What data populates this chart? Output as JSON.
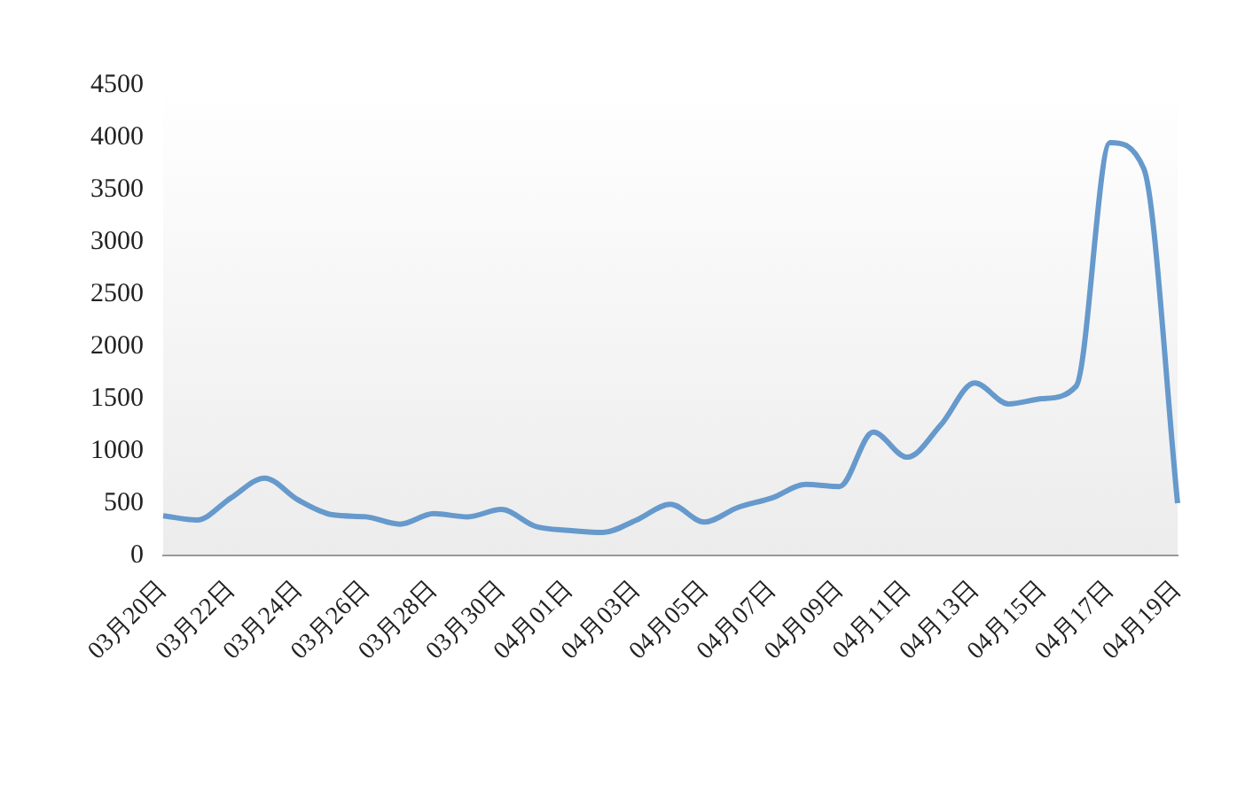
{
  "chart_data": {
    "type": "line",
    "categories": [
      "03月20日",
      null,
      "03月22日",
      null,
      "03月24日",
      null,
      "03月26日",
      null,
      "03月28日",
      null,
      "03月30日",
      null,
      "04月01日",
      null,
      "04月03日",
      null,
      "04月05日",
      null,
      "04月07日",
      null,
      "04月09日",
      null,
      "04月11日",
      null,
      "04月13日",
      null,
      "04月15日",
      null,
      "04月17日",
      null,
      "04月19日"
    ],
    "series": [
      {
        "color": "#6699cc",
        "values": [
          380,
          340,
          550,
          740,
          530,
          390,
          370,
          300,
          400,
          370,
          440,
          280,
          240,
          220,
          340,
          490,
          320,
          460,
          550,
          680,
          660,
          1180,
          940,
          1250,
          1650,
          1450,
          1500,
          1620,
          3950,
          3700,
          500
        ]
      }
    ],
    "ylim": [
      0,
      4500
    ],
    "yticks": [
      0,
      500,
      1000,
      1500,
      2000,
      2500,
      3000,
      3500,
      4000,
      4500
    ],
    "grid": false,
    "legend": false,
    "marker": "none",
    "line_style": "solid"
  }
}
